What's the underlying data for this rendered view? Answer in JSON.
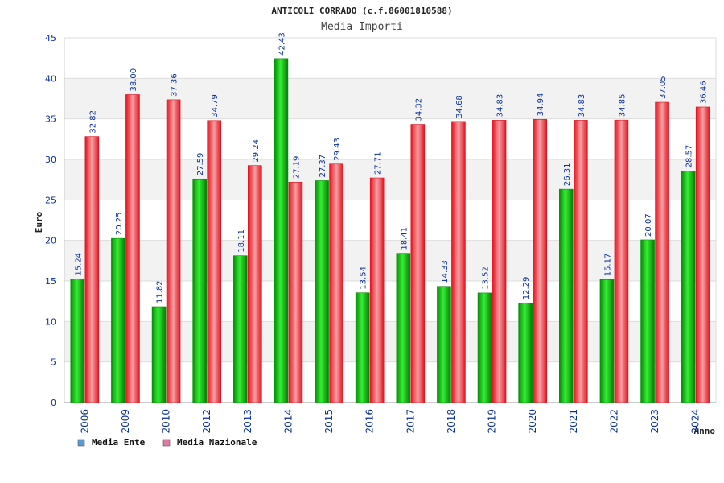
{
  "chart_data": {
    "type": "bar",
    "title": "ANTICOLI CORRADO (c.f.86001810588)",
    "subtitle": "Media Importi",
    "xlabel": "Anno",
    "ylabel": "Euro",
    "ylim": [
      0,
      45
    ],
    "yticks": [
      "0",
      "5",
      "10",
      "15",
      "20",
      "25",
      "30",
      "35",
      "40",
      "45"
    ],
    "grid": true,
    "legend_position": "bottom-left",
    "categories": [
      "2006",
      "2009",
      "2010",
      "2012",
      "2013",
      "2014",
      "2015",
      "2016",
      "2017",
      "2018",
      "2019",
      "2020",
      "2021",
      "2022",
      "2023",
      "2024"
    ],
    "series": [
      {
        "name": "Media Ente",
        "color": "#16c016",
        "legend_color": "#5b9bd5",
        "values": [
          15.24,
          20.25,
          11.82,
          27.59,
          18.11,
          42.43,
          27.37,
          13.54,
          18.41,
          14.33,
          13.52,
          12.29,
          26.31,
          15.17,
          20.07,
          28.57
        ],
        "labels": [
          "15.24",
          "20.25",
          "11.82",
          "27.59",
          "18.11",
          "42.43",
          "27.37",
          "13.54",
          "18.41",
          "14.33",
          "13.52",
          "12.29",
          "26.31",
          "15.17",
          "20.07",
          "28.57"
        ]
      },
      {
        "name": "Media Nazionale",
        "color": "#e8202a",
        "legend_color": "#e07aa0",
        "values": [
          32.82,
          38.0,
          37.36,
          34.79,
          29.24,
          27.19,
          29.43,
          27.71,
          34.32,
          34.68,
          34.83,
          34.94,
          34.83,
          34.85,
          37.05,
          36.46
        ],
        "labels": [
          "32.82",
          "38.00",
          "37.36",
          "34.79",
          "29.24",
          "27.19",
          "29.43",
          "27.71",
          "34.32",
          "34.68",
          "34.83",
          "34.94",
          "34.83",
          "34.85",
          "37.05",
          "36.46"
        ]
      }
    ]
  }
}
